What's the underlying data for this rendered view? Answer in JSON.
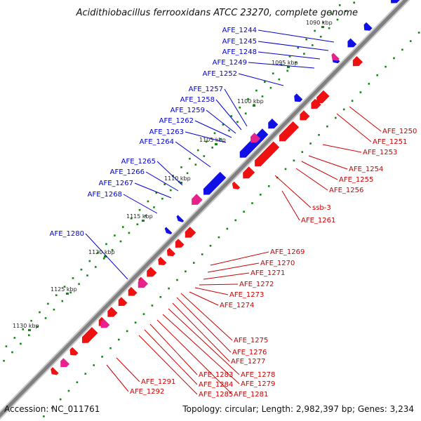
{
  "map": {
    "title": "Acidithiobacillus ferrooxidans ATCC 23270, complete genome",
    "accession_label": "Accession: NC_011761",
    "topology_text": "Topology: circular; Length: 2,982,397 bp; Genes: 3,234",
    "colors": {
      "forward_gene": "#1010e6",
      "reverse_gene": "#ee1111",
      "rna_gene": "#e8228c",
      "forward_label": "#0000cc",
      "reverse_label": "#cc0000",
      "backbone": "#808080",
      "gc_dots": "#118811"
    }
  },
  "ticks": [
    {
      "label": "1090 kbp"
    },
    {
      "label": "1095 kbp"
    },
    {
      "label": "1100 kbp"
    },
    {
      "label": "1105 kbp"
    },
    {
      "label": "1110 kbp"
    },
    {
      "label": "1115 kbp"
    },
    {
      "label": "1120 kbp"
    },
    {
      "label": "1125 kbp"
    },
    {
      "label": "1130 kbp"
    }
  ],
  "forward_labels": [
    {
      "name": "AFE_1244"
    },
    {
      "name": "AFE_1245"
    },
    {
      "name": "AFE_1248"
    },
    {
      "name": "AFE_1249"
    },
    {
      "name": "AFE_1252"
    },
    {
      "name": "AFE_1257"
    },
    {
      "name": "AFE_1258"
    },
    {
      "name": "AFE_1259"
    },
    {
      "name": "AFE_1262"
    },
    {
      "name": "AFE_1263"
    },
    {
      "name": "AFE_1264"
    },
    {
      "name": "AFE_1265"
    },
    {
      "name": "AFE_1266"
    },
    {
      "name": "AFE_1267"
    },
    {
      "name": "AFE_1268"
    },
    {
      "name": "AFE_1280"
    }
  ],
  "reverse_labels": [
    {
      "name": "AFE_1250"
    },
    {
      "name": "AFE_1251"
    },
    {
      "name": "AFE_1253"
    },
    {
      "name": "AFE_1254"
    },
    {
      "name": "AFE_1255"
    },
    {
      "name": "AFE_1256"
    },
    {
      "name": "ssb-3"
    },
    {
      "name": "AFE_1261"
    },
    {
      "name": "AFE_1269"
    },
    {
      "name": "AFE_1270"
    },
    {
      "name": "AFE_1271"
    },
    {
      "name": "AFE_1272"
    },
    {
      "name": "AFE_1273"
    },
    {
      "name": "AFE_1274"
    },
    {
      "name": "AFE_1275"
    },
    {
      "name": "AFE_1276"
    },
    {
      "name": "AFE_1277"
    },
    {
      "name": "AFE_1278"
    },
    {
      "name": "AFE_1279"
    },
    {
      "name": "AFE_1281"
    },
    {
      "name": "AFE_1283"
    },
    {
      "name": "AFE_1284"
    },
    {
      "name": "AFE_1285"
    },
    {
      "name": "AFE_1291"
    },
    {
      "name": "AFE_1292"
    }
  ]
}
